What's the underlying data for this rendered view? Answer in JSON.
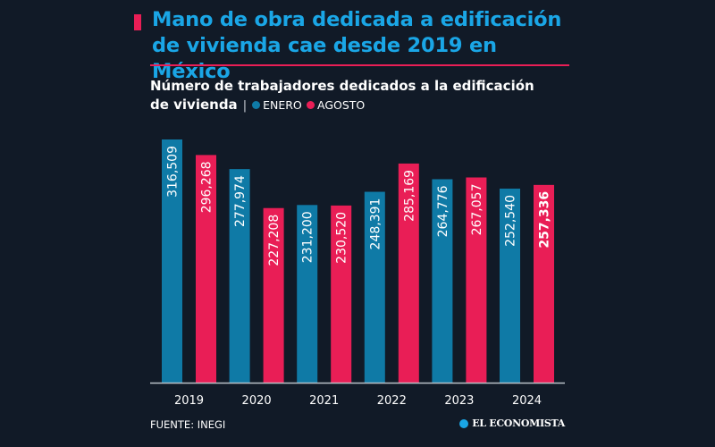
{
  "header": {
    "title": "Mano de obra dedicada a edificación de vivienda cae desde 2019 en México",
    "subtitle_line1": "Número de trabajadores dedicados a la edificación",
    "subtitle_line2": "de vivienda",
    "separator": "|"
  },
  "colors": {
    "enero": "#0f7aa6",
    "agosto": "#e91e56",
    "accent": "#e91e56",
    "title": "#1aa6e6",
    "background": "#111a27",
    "axis": "#b9c0c8"
  },
  "footer": {
    "source": "FUENTE: INEGI",
    "brand": "EL ECONOMISTA"
  },
  "chart_data": {
    "type": "bar",
    "title": "Mano de obra dedicada a edificación de vivienda cae desde 2019 en México",
    "subtitle": "Número de trabajadores dedicados a la edificación de vivienda",
    "xlabel": "",
    "ylabel": "",
    "categories": [
      "2019",
      "2020",
      "2021",
      "2022",
      "2023",
      "2024"
    ],
    "series": [
      {
        "name": "ENERO",
        "color": "#0f7aa6",
        "values": [
          316509,
          277974,
          231200,
          248391,
          264776,
          252540
        ],
        "labels": [
          "316,509",
          "277,974",
          "231,200",
          "248,391",
          "264,776",
          "252,540"
        ]
      },
      {
        "name": "AGOSTO",
        "color": "#e91e56",
        "values": [
          296268,
          227208,
          230520,
          285169,
          267057,
          257336
        ],
        "labels": [
          "296,268",
          "227,208",
          "230,520",
          "285,169",
          "267,057",
          "257,336"
        ]
      }
    ],
    "highlighted_label": {
      "series": "AGOSTO",
      "category": "2024"
    },
    "ylim": [
      0,
      316509
    ],
    "grid": false,
    "y_axis_visible": false,
    "legend": "top-left",
    "data_labels": "inside-vertical"
  }
}
